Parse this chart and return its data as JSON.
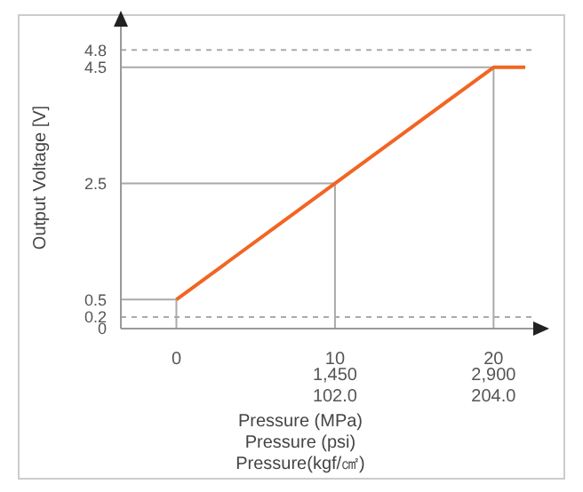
{
  "chart_data": {
    "type": "line",
    "xlabel": "Pressure (MPa)",
    "x2label": "Pressure (psi)",
    "ylabel": "Output Voltage [V]",
    "x": [
      0,
      20,
      22
    ],
    "series": [
      {
        "color": "#f26522",
        "values": [
          0.5,
          4.5,
          4.5
        ]
      }
    ],
    "xlim": [
      -3.5,
      22.5
    ],
    "xticks": [
      0,
      10,
      20
    ],
    "x2lim": [
      -507.5,
      3262.5
    ],
    "x2ticks": [
      {
        "value": 1450,
        "label": "1,450"
      },
      {
        "value": 2900,
        "label": "2,900"
      }
    ],
    "annotations": [
      "102.0",
      "204.0",
      "Pressure(kgf/㎠)"
    ],
    "ylim": [
      0,
      5.2
    ],
    "yticks": [
      0,
      0.2,
      0.5,
      2.5,
      4.5,
      4.8
    ],
    "ref_lines": [
      {
        "axis": "y",
        "value": 0.2,
        "color": "#aaaaaa",
        "line_style": "dashed"
      },
      {
        "axis": "y",
        "value": 4.8,
        "color": "#aaaaaa",
        "line_style": "dashed"
      },
      {
        "axis": "y",
        "value": 0.5,
        "color": "#aaaaaa",
        "line_style": "solid"
      },
      {
        "axis": "y",
        "value": 2.5,
        "color": "#aaaaaa",
        "line_style": "solid"
      },
      {
        "axis": "y",
        "value": 4.5,
        "color": "#aaaaaa",
        "line_style": "solid"
      },
      {
        "axis": "x",
        "value": 0,
        "color": "#aaaaaa",
        "line_style": "solid"
      },
      {
        "axis": "x",
        "value": 10,
        "color": "#aaaaaa",
        "line_style": "solid"
      },
      {
        "axis": "x",
        "value": 20,
        "color": "#aaaaaa",
        "line_style": "solid"
      }
    ],
    "marker": "none",
    "line_style": "solid",
    "legend": false
  }
}
